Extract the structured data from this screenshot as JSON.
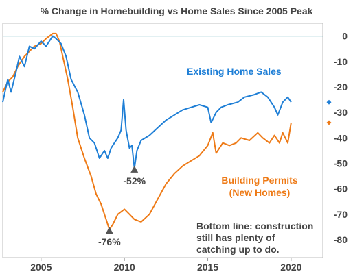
{
  "chart_data": {
    "type": "line",
    "title": "% Change in Homebuilding vs Home Sales Since 2005 Peak",
    "xlabel": "",
    "ylabel": "",
    "xlim": [
      2002.7,
      2021.9
    ],
    "ylim": [
      -87,
      5
    ],
    "x_ticks": [
      2005,
      2010,
      2015,
      2020
    ],
    "x_tick_labels": [
      "2005",
      "2010",
      "2015",
      "2020"
    ],
    "y_ticks": [
      0,
      -10,
      -20,
      -30,
      -40,
      -50,
      -60,
      -70,
      -80
    ],
    "y_tick_labels": [
      "0",
      "-10",
      "-20",
      "-30",
      "-40",
      "-50",
      "-60",
      "-70",
      "-80"
    ],
    "grid": false,
    "reference_line": {
      "y": 0,
      "color": "#1a8a9a"
    },
    "series": [
      {
        "name": "Existing Home Sales",
        "color": "#1f7fd6",
        "x": [
          2002.7,
          2003.0,
          2003.2,
          2003.5,
          2003.7,
          2004.0,
          2004.3,
          2004.6,
          2005.0,
          2005.3,
          2005.7,
          2005.9,
          2006.2,
          2006.5,
          2006.8,
          2007.2,
          2007.6,
          2007.9,
          2008.2,
          2008.5,
          2008.8,
          2009.0,
          2009.2,
          2009.4,
          2009.6,
          2009.8,
          2009.95,
          2010.1,
          2010.3,
          2010.45,
          2010.6,
          2010.75,
          2011.0,
          2011.5,
          2012.0,
          2012.5,
          2013.0,
          2013.5,
          2014.0,
          2014.5,
          2015.0,
          2015.2,
          2015.5,
          2015.8,
          2016.2,
          2016.8,
          2017.2,
          2017.8,
          2018.2,
          2018.6,
          2019.0,
          2019.2,
          2019.5,
          2019.8,
          2020.0
        ],
        "values": [
          -26,
          -17,
          -22,
          -14,
          -8,
          -12,
          -4,
          -5,
          -2,
          -4,
          0,
          -1,
          -3,
          -8,
          -17,
          -22,
          -31,
          -40,
          -42,
          -48,
          -45,
          -48,
          -44,
          -42,
          -40,
          -37,
          -25,
          -37,
          -44,
          -43,
          -52,
          -45,
          -41,
          -39,
          -36,
          -33,
          -31,
          -29,
          -28,
          -27,
          -28,
          -34,
          -30,
          -28,
          -27,
          -26,
          -24,
          -23,
          -22,
          -24,
          -28,
          -31,
          -26,
          -24,
          -26
        ]
      },
      {
        "name": "Building Permits (New Homes)",
        "color": "#ee7a16",
        "x": [
          2002.7,
          2003.0,
          2003.3,
          2003.6,
          2004.0,
          2004.3,
          2004.6,
          2005.0,
          2005.3,
          2005.7,
          2005.9,
          2006.1,
          2006.3,
          2006.6,
          2006.9,
          2007.2,
          2007.6,
          2008.0,
          2008.3,
          2008.6,
          2008.9,
          2009.1,
          2009.3,
          2009.6,
          2010.0,
          2010.3,
          2010.6,
          2011.0,
          2011.5,
          2012.0,
          2012.5,
          2013.0,
          2013.5,
          2014.0,
          2014.5,
          2015.0,
          2015.3,
          2015.5,
          2015.9,
          2016.3,
          2016.7,
          2017.0,
          2017.5,
          2018.0,
          2018.3,
          2018.7,
          2019.0,
          2019.3,
          2019.5,
          2019.8,
          2020.0
        ],
        "values": [
          -22,
          -18,
          -16,
          -12,
          -8,
          -6,
          -4,
          -3,
          -1,
          1,
          1,
          -2,
          -8,
          -17,
          -28,
          -40,
          -48,
          -55,
          -62,
          -66,
          -72,
          -76,
          -74,
          -70,
          -68,
          -70,
          -72,
          -73,
          -70,
          -64,
          -58,
          -54,
          -51,
          -49,
          -47,
          -43,
          -38,
          -46,
          -42,
          -43,
          -42,
          -40,
          -41,
          -38,
          -40,
          -42,
          -39,
          -42,
          -38,
          -42,
          -34
        ]
      }
    ],
    "labels": {
      "existing_home_sales": "Existing Home Sales",
      "building_permits_line1": "Building Permits",
      "building_permits_line2": "(New Homes)"
    },
    "annotations": [
      {
        "text": "-52%",
        "x": 2010.6,
        "y": -52
      },
      {
        "text": "-76%",
        "x": 2009.1,
        "y": -76
      }
    ],
    "end_markers": [
      {
        "series": "Existing Home Sales",
        "y": -26
      },
      {
        "series": "Building Permits (New Homes)",
        "y": -34
      }
    ],
    "note": {
      "lines": [
        "Bottom line: construction",
        "still has plenty of",
        "catching up to do."
      ]
    }
  }
}
